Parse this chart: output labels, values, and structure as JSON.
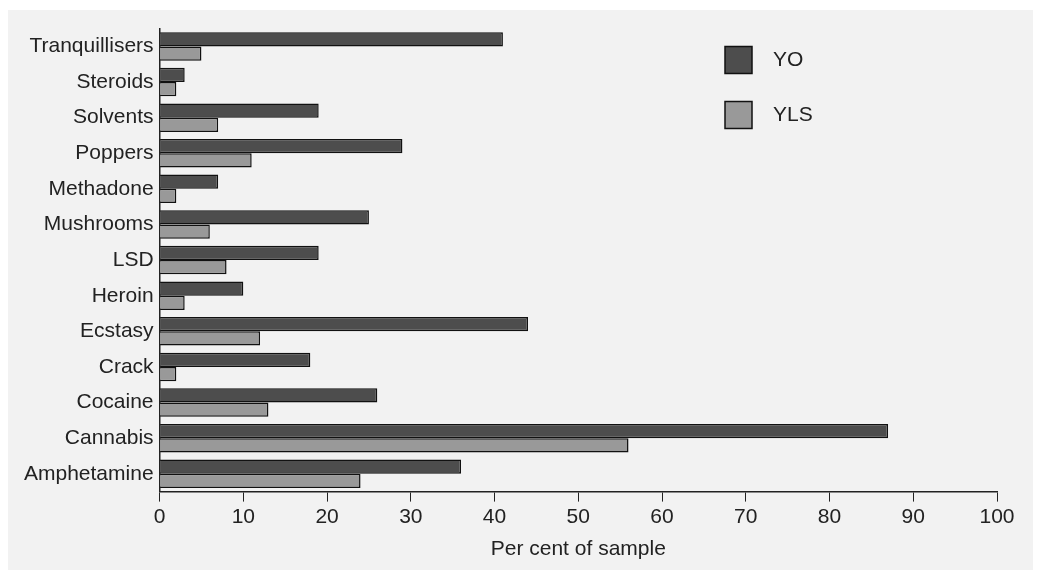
{
  "chart_data": {
    "type": "bar",
    "orientation": "horizontal",
    "xlabel": "Per cent of sample",
    "categories": [
      "Tranquillisers",
      "Steroids",
      "Solvents",
      "Poppers",
      "Methadone",
      "Mushrooms",
      "LSD",
      "Heroin",
      "Ecstasy",
      "Crack",
      "Cocaine",
      "Cannabis",
      "Amphetamine"
    ],
    "series": [
      {
        "name": "YO",
        "color": "#4d4d4d",
        "values": [
          41,
          3,
          19,
          29,
          7,
          25,
          19,
          10,
          44,
          18,
          26,
          87,
          36
        ]
      },
      {
        "name": "YLS",
        "color": "#999999",
        "values": [
          5,
          2,
          7,
          11,
          2,
          6,
          8,
          3,
          12,
          2,
          13,
          56,
          24
        ]
      }
    ],
    "xlim": [
      0,
      100
    ],
    "xticks": [
      0,
      10,
      20,
      30,
      40,
      50,
      60,
      70,
      80,
      90,
      100
    ],
    "grid": false,
    "legend": "top right"
  }
}
